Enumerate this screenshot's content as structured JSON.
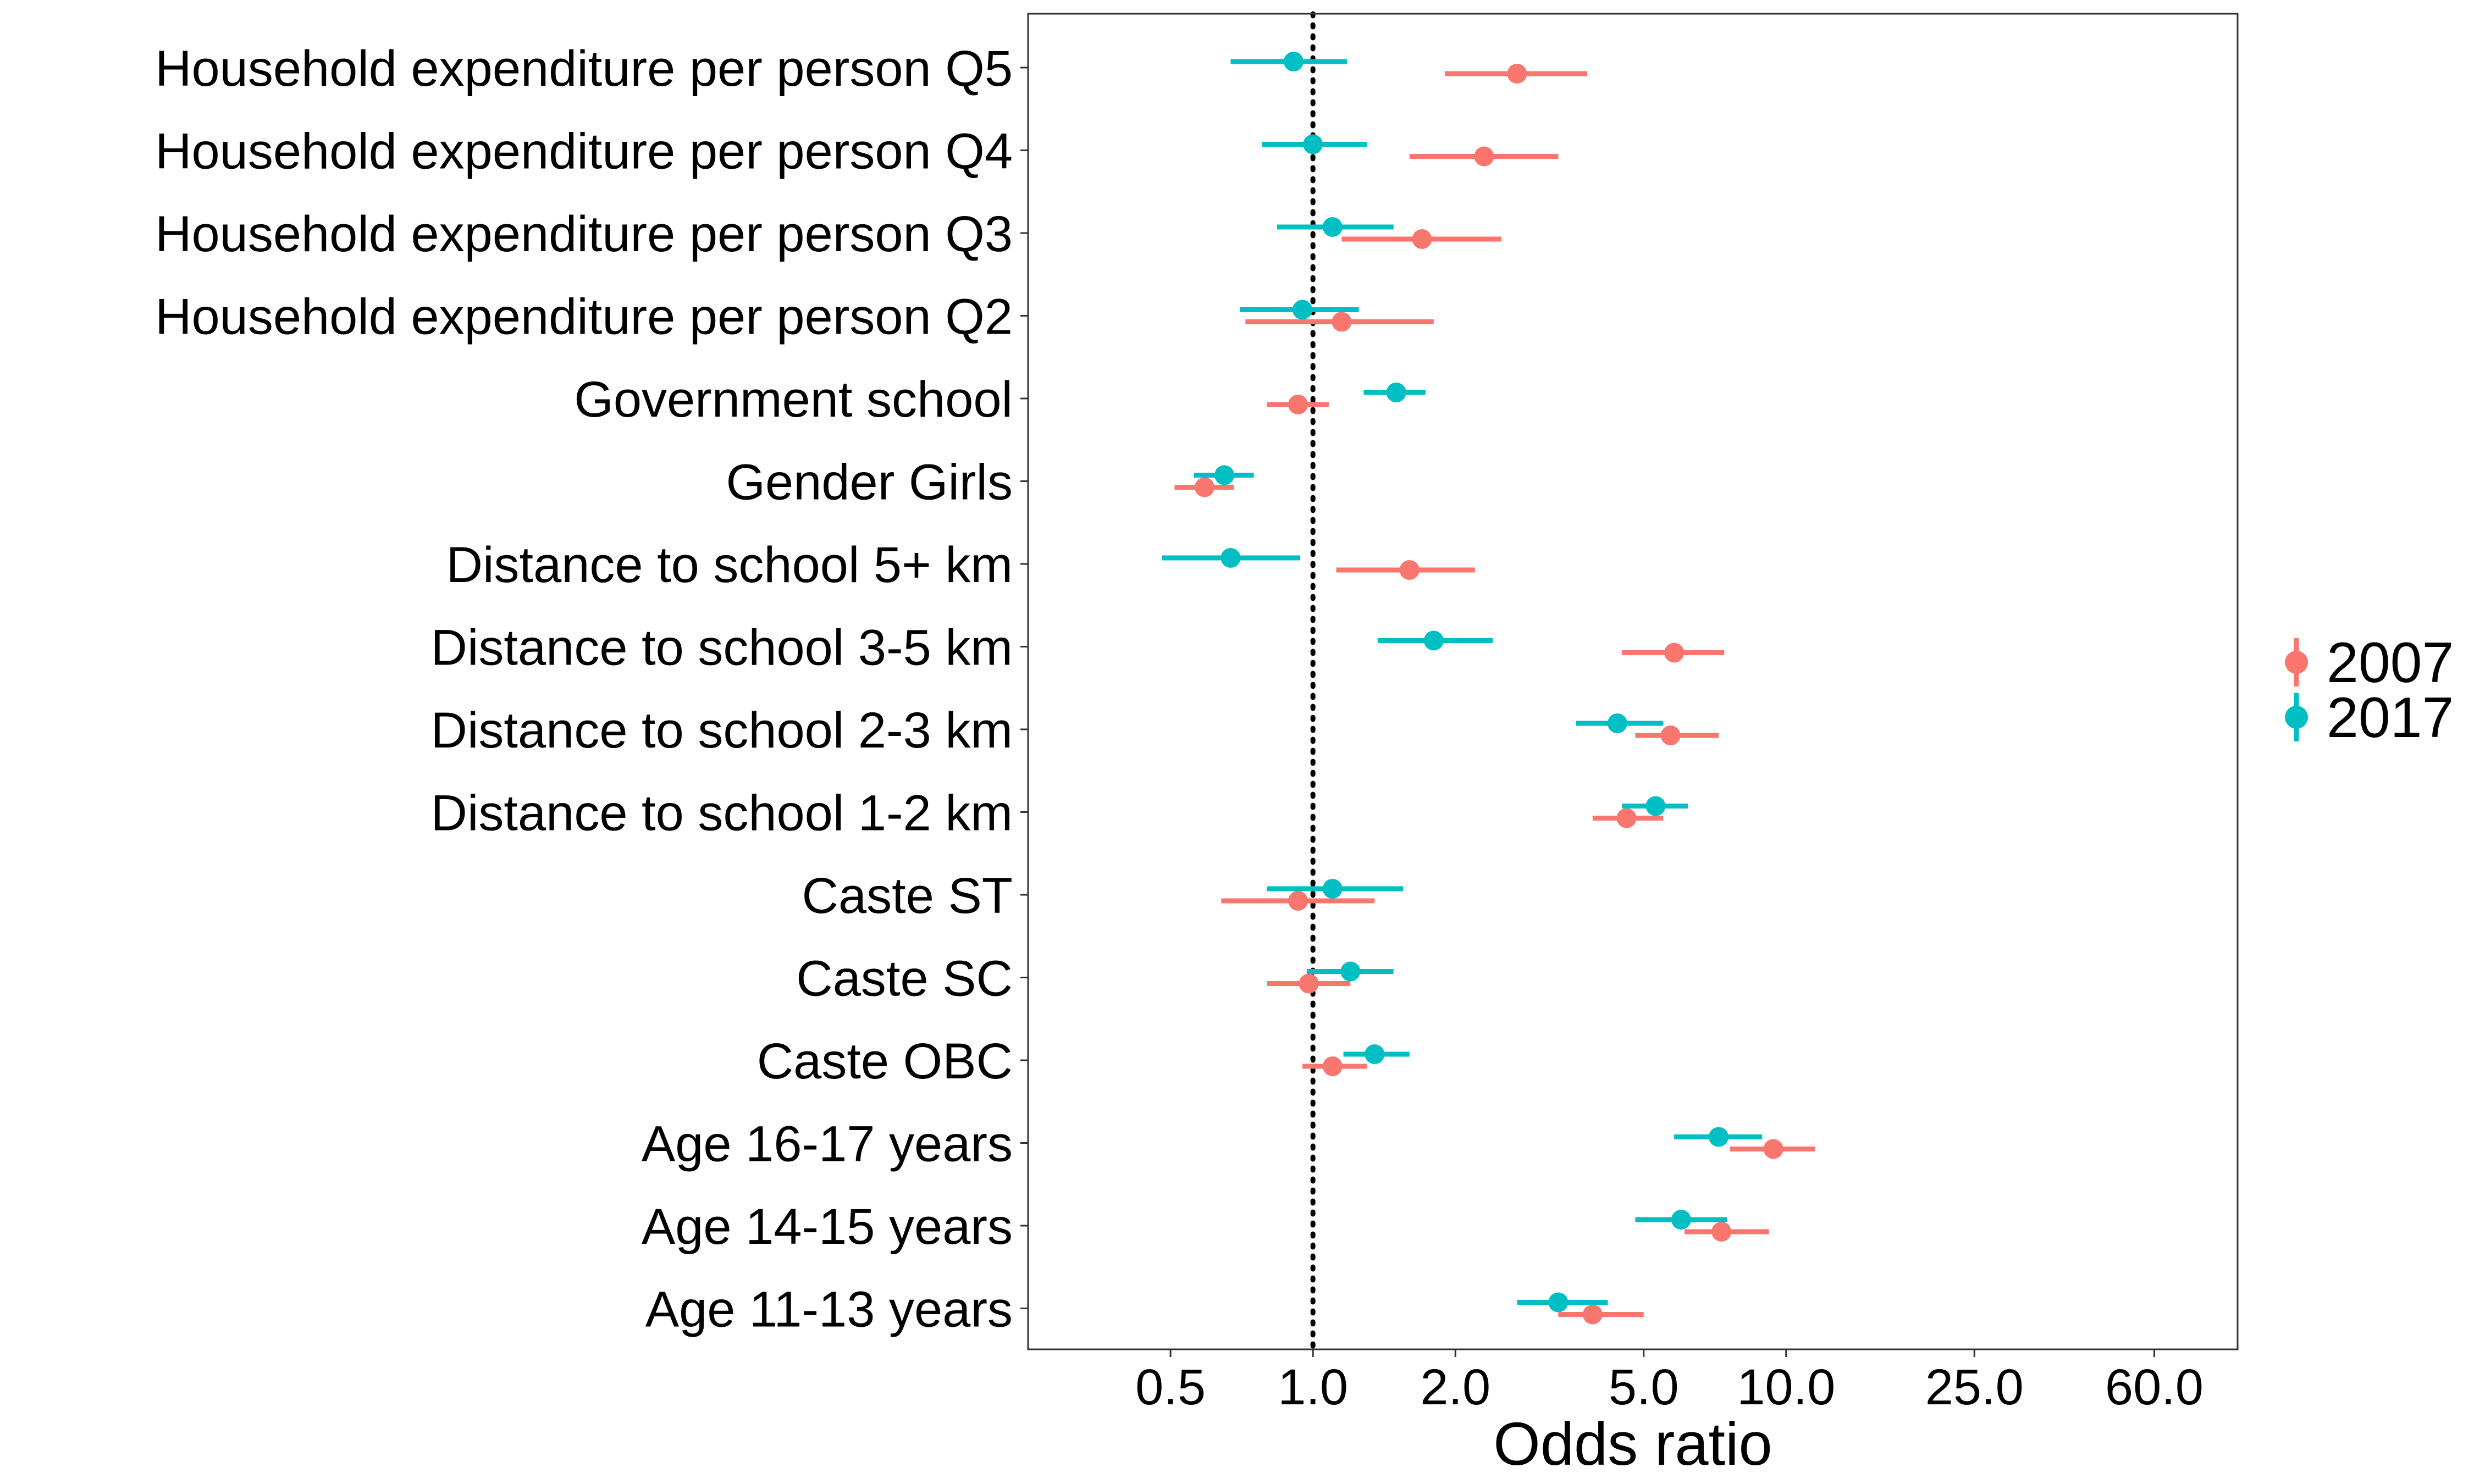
{
  "chart_data": {
    "type": "scatter",
    "title": "",
    "xlabel": "Odds ratio",
    "ylabel": "",
    "x_scale": "log",
    "xlim": [
      0.25,
      90
    ],
    "x_ticks": [
      0.5,
      1,
      2,
      5,
      10,
      25,
      60
    ],
    "x_tick_labels": [
      "0.5",
      "1.0",
      "2.0",
      "5.0",
      "10.0",
      "25.0",
      "60.0"
    ],
    "reference_line": 1,
    "grid": false,
    "legend_position": "right",
    "categories": [
      "Household expenditure per person Q5",
      "Household expenditure per person Q4",
      "Household expenditure per person Q3",
      "Household expenditure per person Q2",
      "Government school",
      "Gender Girls",
      "Distance to school 5+ km",
      "Distance to school 3-5 km",
      "Distance to school 2-3 km",
      "Distance to school 1-2 km",
      "Caste ST",
      "Caste SC",
      "Caste OBC",
      "Age 16-17 years",
      "Age 14-15 years",
      "Age 11-13 years"
    ],
    "series": [
      {
        "name": "2007",
        "color": "#F8766D",
        "values": [
          2.7,
          2.3,
          1.7,
          1.15,
          0.93,
          0.59,
          1.6,
          5.8,
          5.7,
          4.6,
          0.93,
          0.98,
          1.1,
          9.4,
          7.3,
          3.9
        ],
        "lower": [
          1.9,
          1.6,
          1.15,
          0.72,
          0.8,
          0.51,
          1.12,
          4.5,
          4.8,
          3.9,
          0.64,
          0.8,
          0.95,
          7.6,
          6.1,
          3.3
        ],
        "upper": [
          3.8,
          3.3,
          2.5,
          1.8,
          1.08,
          0.68,
          2.2,
          7.4,
          7.2,
          5.5,
          1.35,
          1.2,
          1.3,
          11.5,
          9.2,
          5.0
        ]
      },
      {
        "name": "2017",
        "color": "#00BFC4",
        "values": [
          0.91,
          1.0,
          1.1,
          0.95,
          1.5,
          0.65,
          0.67,
          1.8,
          4.4,
          5.3,
          1.1,
          1.2,
          1.35,
          7.2,
          6.0,
          3.3
        ],
        "lower": [
          0.67,
          0.78,
          0.84,
          0.7,
          1.28,
          0.56,
          0.48,
          1.37,
          3.6,
          4.5,
          0.8,
          0.97,
          1.16,
          5.8,
          4.8,
          2.7
        ],
        "upper": [
          1.18,
          1.3,
          1.48,
          1.25,
          1.73,
          0.75,
          0.94,
          2.4,
          5.5,
          6.2,
          1.55,
          1.48,
          1.6,
          8.9,
          7.5,
          4.2
        ]
      }
    ]
  }
}
